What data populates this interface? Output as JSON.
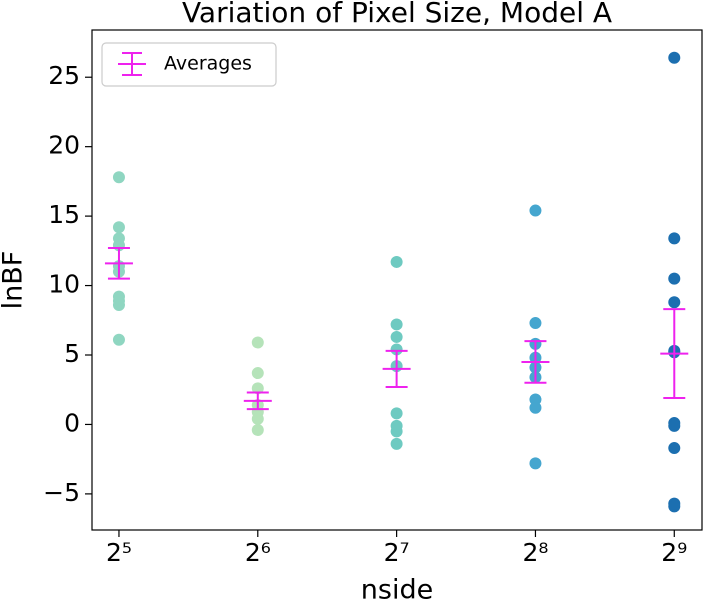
{
  "chart_data": {
    "type": "scatter",
    "title": "Variation of Pixel Size, Model A",
    "xlabel": "nside",
    "ylabel": "lnBF",
    "xscale": "log2",
    "xlim": [
      27.97,
      588
    ],
    "xticks": [
      {
        "value": 32,
        "label": "2⁵"
      },
      {
        "value": 64,
        "label": "2⁶"
      },
      {
        "value": 128,
        "label": "2⁷"
      },
      {
        "value": 256,
        "label": "2⁸"
      },
      {
        "value": 512,
        "label": "2⁹"
      }
    ],
    "ylim": [
      -7.6,
      28.4
    ],
    "yticks": [
      {
        "value": -5,
        "label": "−5"
      },
      0,
      5,
      10,
      15,
      20,
      25
    ],
    "grid": false,
    "legend": "upper left",
    "series": [
      {
        "x": 32,
        "color": "#8fd6c1",
        "values": [
          17.8,
          14.2,
          13.4,
          12.9,
          11.4,
          11.0,
          9.2,
          8.9,
          8.6,
          6.1
        ]
      },
      {
        "x": 64,
        "color": "#b5e3b9",
        "values": [
          5.9,
          3.7,
          2.6,
          1.4,
          0.9,
          0.4,
          -0.4
        ]
      },
      {
        "x": 128,
        "color": "#6ecac1",
        "values": [
          11.7,
          7.2,
          6.3,
          5.4,
          4.2,
          0.8,
          -0.1,
          -0.5,
          -1.4
        ]
      },
      {
        "x": 256,
        "color": "#45a6cf",
        "values": [
          15.4,
          7.3,
          5.8,
          4.8,
          4.1,
          3.4,
          1.8,
          1.2,
          -2.8
        ]
      },
      {
        "x": 512,
        "color": "#1c6fb0",
        "values": [
          26.4,
          13.4,
          10.5,
          8.8,
          5.3,
          5.2,
          0.1,
          -0.1,
          -1.7,
          -5.7,
          -5.9
        ]
      }
    ],
    "averages": {
      "name": "Averages",
      "color": "#ee22ee",
      "x": [
        32,
        64,
        128,
        256,
        512
      ],
      "values": [
        11.6,
        1.7,
        4.0,
        4.5,
        5.1
      ],
      "errors": [
        1.1,
        0.6,
        1.3,
        1.5,
        3.2
      ]
    }
  }
}
